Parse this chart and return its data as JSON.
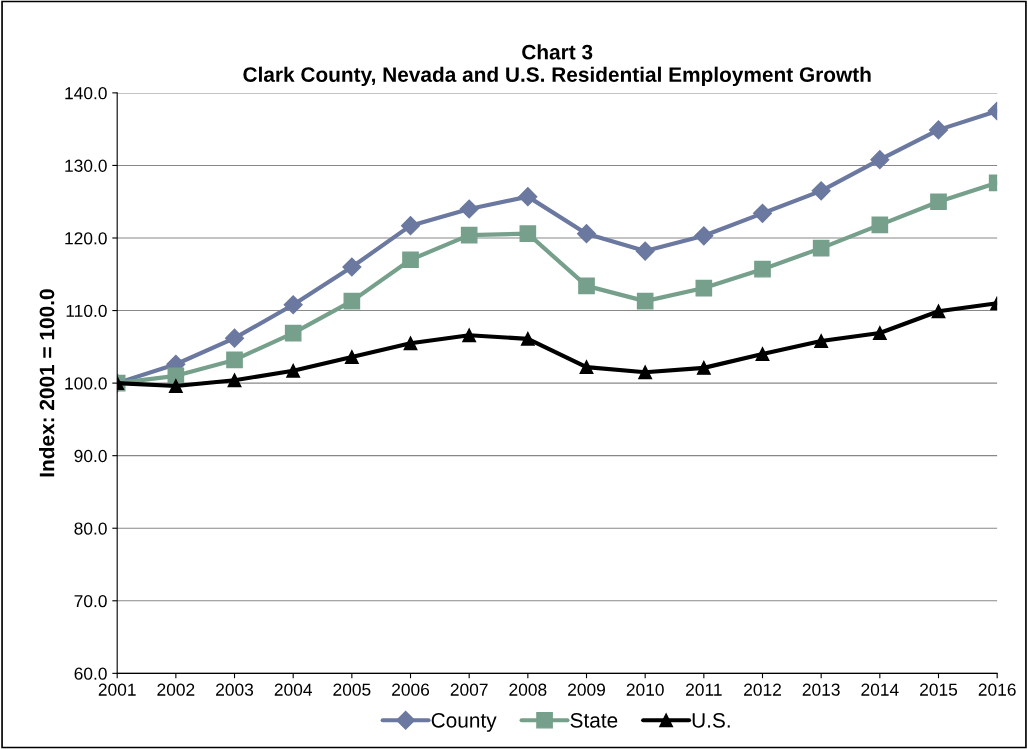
{
  "chart_data": {
    "type": "line",
    "title": "Chart 3\nClark County, Nevada and U.S. Residential Employment Growth",
    "ylabel": "Index: 2001 = 100.0",
    "categories": [
      "2001",
      "2002",
      "2003",
      "2004",
      "2005",
      "2006",
      "2007",
      "2008",
      "2009",
      "2010",
      "2011",
      "2012",
      "2013",
      "2014",
      "2015",
      "2016"
    ],
    "series": [
      {
        "name": "County",
        "color": "#6b78a0",
        "marker": "diamond",
        "values": [
          100.0,
          102.6,
          106.2,
          110.8,
          116.0,
          121.7,
          124.0,
          125.7,
          120.6,
          118.2,
          120.3,
          123.4,
          126.5,
          130.8,
          134.9,
          137.5
        ]
      },
      {
        "name": "State",
        "color": "#76a08c",
        "marker": "square",
        "values": [
          100.0,
          101.0,
          103.2,
          106.9,
          111.3,
          117.0,
          120.4,
          120.6,
          113.4,
          111.3,
          113.1,
          115.7,
          118.6,
          121.8,
          125.0,
          127.6
        ]
      },
      {
        "name": "U.S.",
        "color": "#000000",
        "marker": "triangle",
        "values": [
          100.0,
          99.6,
          100.4,
          101.7,
          103.6,
          105.5,
          106.6,
          106.1,
          102.2,
          101.5,
          102.1,
          104.0,
          105.8,
          106.9,
          109.9,
          111.0
        ]
      }
    ],
    "ylim": [
      60,
      140
    ],
    "yticks": [
      {
        "value": 60,
        "label": "60.0"
      },
      {
        "value": 70,
        "label": "70.0"
      },
      {
        "value": 80,
        "label": "80.0"
      },
      {
        "value": 90,
        "label": "90.0"
      },
      {
        "value": 100,
        "label": "100.0"
      },
      {
        "value": 110,
        "label": "110.0"
      },
      {
        "value": 120,
        "label": "120.0"
      },
      {
        "value": 130,
        "label": "130.0"
      },
      {
        "value": 140,
        "label": "140.0"
      }
    ],
    "grid": "y",
    "legend": "bottom",
    "line_style": "solid"
  }
}
